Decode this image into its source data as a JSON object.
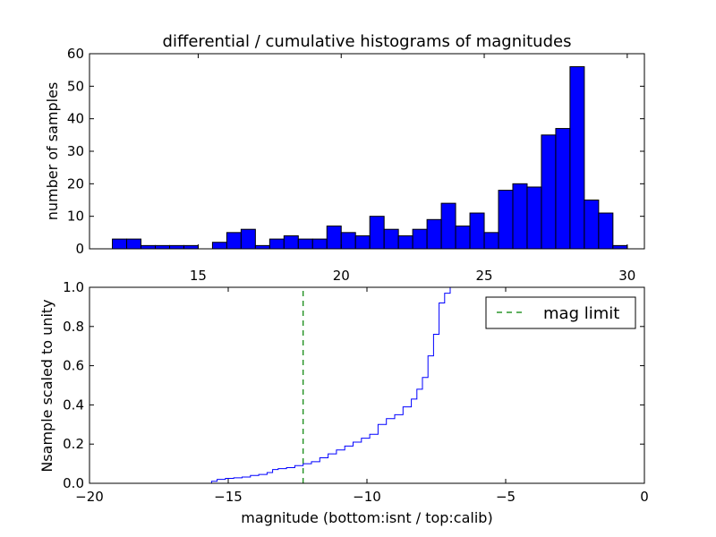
{
  "chart_data": [
    {
      "type": "bar",
      "title": "differential / cumulative histograms of magnitudes",
      "ylabel": "number of samples",
      "xlabel": "",
      "xlim": [
        11.2,
        30.6
      ],
      "ylim": [
        0,
        60
      ],
      "xticks": [
        15,
        20,
        25,
        30
      ],
      "yticks": [
        0,
        10,
        20,
        30,
        40,
        50,
        60
      ],
      "bin_width": 0.5,
      "bin_edges_start": 12.0,
      "values": [
        3,
        3,
        1,
        1,
        1,
        1,
        0,
        2,
        5,
        6,
        1,
        3,
        4,
        3,
        3,
        7,
        5,
        4,
        10,
        6,
        4,
        6,
        9,
        14,
        7,
        11,
        5,
        18,
        20,
        19,
        35,
        37,
        56,
        15,
        11,
        1
      ],
      "bar_color": "#0000ff",
      "grid": false
    },
    {
      "type": "line",
      "step": true,
      "ylabel": "Nsample scaled to unity",
      "xlabel": "magnitude (bottom:isnt / top:calib)",
      "xlim": [
        -20,
        0
      ],
      "ylim": [
        0,
        1.0
      ],
      "xticks": [
        -20,
        -15,
        -10,
        -5,
        0
      ],
      "yticks": [
        0.0,
        0.2,
        0.4,
        0.6,
        0.8,
        1.0
      ],
      "series": [
        {
          "name": "",
          "color": "#0000ff",
          "x": [
            -15.8,
            -15.6,
            -15.4,
            -15.1,
            -14.8,
            -14.5,
            -14.2,
            -13.9,
            -13.6,
            -13.4,
            -13.2,
            -12.9,
            -12.6,
            -12.3,
            -12.0,
            -11.7,
            -11.4,
            -11.1,
            -10.8,
            -10.5,
            -10.2,
            -9.9,
            -9.6,
            -9.3,
            -9.0,
            -8.7,
            -8.4,
            -8.2,
            -8.0,
            -7.8,
            -7.6,
            -7.4,
            -7.2,
            -7.0
          ],
          "y": [
            0.0,
            0.01,
            0.02,
            0.025,
            0.028,
            0.032,
            0.04,
            0.045,
            0.055,
            0.07,
            0.075,
            0.08,
            0.09,
            0.1,
            0.11,
            0.13,
            0.15,
            0.17,
            0.19,
            0.21,
            0.23,
            0.25,
            0.3,
            0.33,
            0.35,
            0.39,
            0.43,
            0.48,
            0.54,
            0.65,
            0.76,
            0.92,
            0.97,
            1.0
          ]
        },
        {
          "name": "mag limit",
          "color": "#008000",
          "dashed": true,
          "vline": -12.3
        }
      ],
      "legend": {
        "entries": [
          "mag limit"
        ],
        "placement": "top-right"
      },
      "grid": false
    }
  ]
}
